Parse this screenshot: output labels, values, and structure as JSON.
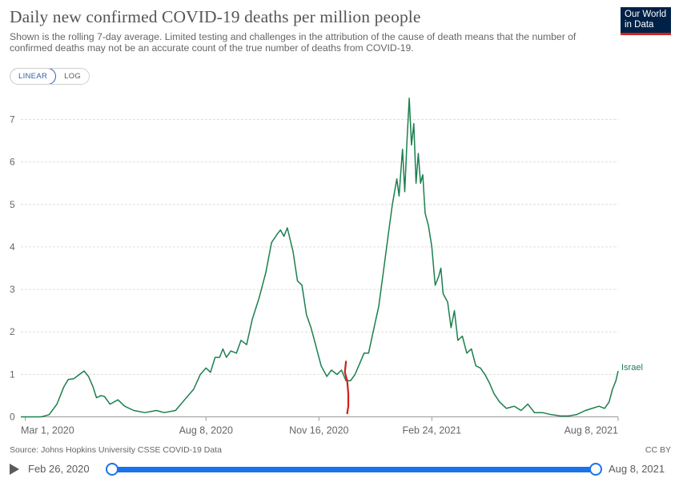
{
  "header": {
    "title": "Daily new confirmed COVID-19 deaths per million people",
    "subtitle": "Shown is the rolling 7-day average. Limited testing and challenges in the attribution of the cause of death means that the number of confirmed deaths may not be an accurate count of the true number of deaths from COVID-19."
  },
  "logo": {
    "line1": "Our World",
    "line2": "in Data"
  },
  "scale_toggle": {
    "linear": "LINEAR",
    "log": "LOG",
    "selected": "LINEAR"
  },
  "footer": {
    "source": "Source: Johns Hopkins University CSSE COVID-19 Data",
    "license": "CC BY"
  },
  "timeline": {
    "start": "Feb 26, 2020",
    "end": "Aug 8, 2021"
  },
  "colors": {
    "series": "#1b7f4e",
    "annotation": "#d0201c",
    "accent": "#1a73e8",
    "axis": "#999999"
  },
  "chart_data": {
    "type": "line",
    "title": "Daily new confirmed COVID-19 deaths per million people",
    "x_range": [
      "2020-02-26",
      "2021-08-08"
    ],
    "ylim": [
      0,
      7.5
    ],
    "y_ticks": [
      0,
      1,
      2,
      3,
      4,
      5,
      6,
      7
    ],
    "x_ticks": [
      {
        "date": "2020-03-01",
        "label": "Mar 1, 2020"
      },
      {
        "date": "2020-08-08",
        "label": "Aug 8, 2020"
      },
      {
        "date": "2020-11-16",
        "label": "Nov 16, 2020"
      },
      {
        "date": "2021-02-24",
        "label": "Feb 24, 2021"
      },
      {
        "date": "2021-08-08",
        "label": "Aug 8, 2021"
      }
    ],
    "grid": "horizontal dashed",
    "series": [
      {
        "name": "Israel",
        "points": [
          [
            "2020-02-26",
            0
          ],
          [
            "2020-03-15",
            0
          ],
          [
            "2020-03-22",
            0.05
          ],
          [
            "2020-03-29",
            0.3
          ],
          [
            "2020-04-04",
            0.7
          ],
          [
            "2020-04-08",
            0.88
          ],
          [
            "2020-04-13",
            0.9
          ],
          [
            "2020-04-18",
            1.0
          ],
          [
            "2020-04-22",
            1.08
          ],
          [
            "2020-04-26",
            0.95
          ],
          [
            "2020-04-30",
            0.7
          ],
          [
            "2020-05-03",
            0.45
          ],
          [
            "2020-05-07",
            0.5
          ],
          [
            "2020-05-10",
            0.48
          ],
          [
            "2020-05-15",
            0.3
          ],
          [
            "2020-05-22",
            0.4
          ],
          [
            "2020-05-28",
            0.25
          ],
          [
            "2020-06-05",
            0.15
          ],
          [
            "2020-06-15",
            0.1
          ],
          [
            "2020-06-25",
            0.15
          ],
          [
            "2020-07-02",
            0.1
          ],
          [
            "2020-07-12",
            0.15
          ],
          [
            "2020-07-20",
            0.4
          ],
          [
            "2020-07-28",
            0.65
          ],
          [
            "2020-08-03",
            1.0
          ],
          [
            "2020-08-08",
            1.15
          ],
          [
            "2020-08-12",
            1.05
          ],
          [
            "2020-08-16",
            1.4
          ],
          [
            "2020-08-20",
            1.4
          ],
          [
            "2020-08-23",
            1.6
          ],
          [
            "2020-08-26",
            1.4
          ],
          [
            "2020-08-30",
            1.55
          ],
          [
            "2020-09-04",
            1.5
          ],
          [
            "2020-09-08",
            1.8
          ],
          [
            "2020-09-13",
            1.7
          ],
          [
            "2020-09-18",
            2.3
          ],
          [
            "2020-09-24",
            2.8
          ],
          [
            "2020-09-30",
            3.4
          ],
          [
            "2020-10-05",
            4.1
          ],
          [
            "2020-10-10",
            4.3
          ],
          [
            "2020-10-13",
            4.4
          ],
          [
            "2020-10-16",
            4.25
          ],
          [
            "2020-10-19",
            4.45
          ],
          [
            "2020-10-24",
            3.9
          ],
          [
            "2020-10-28",
            3.2
          ],
          [
            "2020-11-01",
            3.1
          ],
          [
            "2020-11-05",
            2.4
          ],
          [
            "2020-11-09",
            2.1
          ],
          [
            "2020-11-13",
            1.7
          ],
          [
            "2020-11-18",
            1.2
          ],
          [
            "2020-11-23",
            0.95
          ],
          [
            "2020-11-27",
            1.1
          ],
          [
            "2020-12-02",
            1.0
          ],
          [
            "2020-12-06",
            1.1
          ],
          [
            "2020-12-10",
            0.85
          ],
          [
            "2020-12-14",
            0.85
          ],
          [
            "2020-12-18",
            1.0
          ],
          [
            "2020-12-22",
            1.25
          ],
          [
            "2020-12-26",
            1.5
          ],
          [
            "2020-12-30",
            1.5
          ],
          [
            "2021-01-03",
            2.0
          ],
          [
            "2021-01-08",
            2.6
          ],
          [
            "2021-01-12",
            3.4
          ],
          [
            "2021-01-16",
            4.2
          ],
          [
            "2021-01-20",
            5.0
          ],
          [
            "2021-01-24",
            5.6
          ],
          [
            "2021-01-26",
            5.2
          ],
          [
            "2021-01-29",
            6.3
          ],
          [
            "2021-01-31",
            5.3
          ],
          [
            "2021-02-02",
            6.5
          ],
          [
            "2021-02-04",
            7.5
          ],
          [
            "2021-02-06",
            6.4
          ],
          [
            "2021-02-08",
            6.9
          ],
          [
            "2021-02-10",
            5.5
          ],
          [
            "2021-02-12",
            6.2
          ],
          [
            "2021-02-14",
            5.5
          ],
          [
            "2021-02-16",
            5.7
          ],
          [
            "2021-02-18",
            4.8
          ],
          [
            "2021-02-21",
            4.5
          ],
          [
            "2021-02-24",
            4.0
          ],
          [
            "2021-02-27",
            3.1
          ],
          [
            "2021-03-02",
            3.3
          ],
          [
            "2021-03-04",
            3.5
          ],
          [
            "2021-03-06",
            2.9
          ],
          [
            "2021-03-10",
            2.7
          ],
          [
            "2021-03-13",
            2.1
          ],
          [
            "2021-03-16",
            2.5
          ],
          [
            "2021-03-19",
            1.8
          ],
          [
            "2021-03-23",
            1.9
          ],
          [
            "2021-03-27",
            1.5
          ],
          [
            "2021-03-31",
            1.6
          ],
          [
            "2021-04-04",
            1.2
          ],
          [
            "2021-04-08",
            1.15
          ],
          [
            "2021-04-12",
            1.0
          ],
          [
            "2021-04-16",
            0.8
          ],
          [
            "2021-04-20",
            0.55
          ],
          [
            "2021-04-25",
            0.35
          ],
          [
            "2021-05-01",
            0.2
          ],
          [
            "2021-05-08",
            0.25
          ],
          [
            "2021-05-14",
            0.15
          ],
          [
            "2021-05-20",
            0.3
          ],
          [
            "2021-05-26",
            0.1
          ],
          [
            "2021-06-02",
            0.1
          ],
          [
            "2021-06-10",
            0.05
          ],
          [
            "2021-06-18",
            0.02
          ],
          [
            "2021-06-25",
            0.02
          ],
          [
            "2021-07-02",
            0.05
          ],
          [
            "2021-07-10",
            0.15
          ],
          [
            "2021-07-16",
            0.2
          ],
          [
            "2021-07-22",
            0.25
          ],
          [
            "2021-07-27",
            0.2
          ],
          [
            "2021-07-31",
            0.35
          ],
          [
            "2021-08-03",
            0.65
          ],
          [
            "2021-08-06",
            0.85
          ],
          [
            "2021-08-08",
            1.08
          ]
        ]
      }
    ],
    "annotation_stroke": {
      "color": "#d0201c",
      "points": [
        [
          "2020-12-10",
          1.3
        ],
        [
          "2020-12-09",
          1.05
        ],
        [
          "2020-12-11",
          0.85
        ],
        [
          "2020-12-12",
          0.55
        ],
        [
          "2020-12-12",
          0.25
        ],
        [
          "2020-12-11",
          0.08
        ]
      ]
    }
  }
}
